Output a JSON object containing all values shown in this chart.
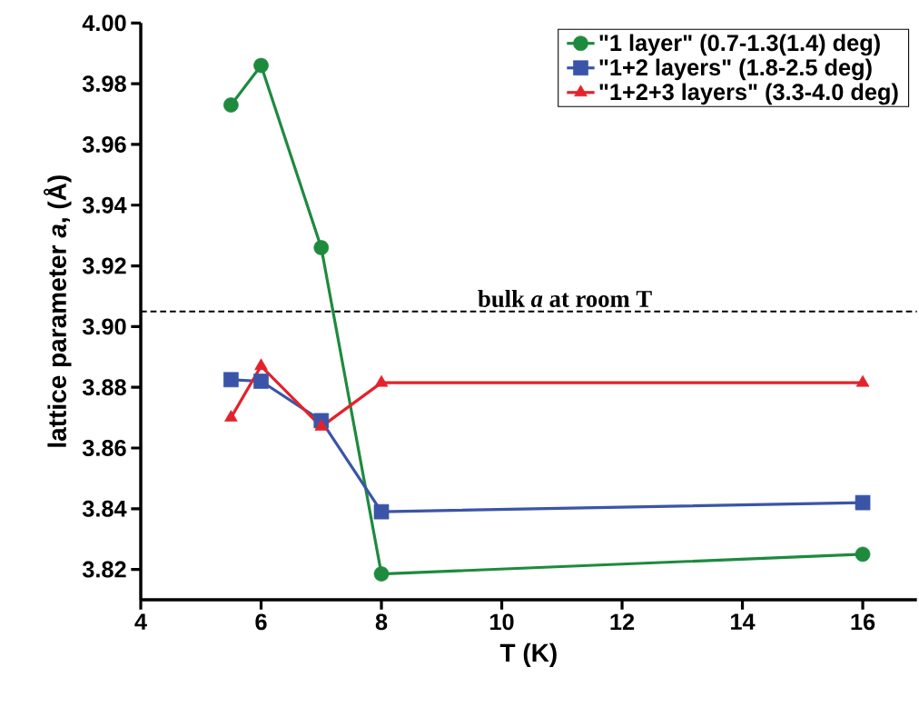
{
  "chart_data": {
    "type": "line",
    "xlabel": "T (K)",
    "ylabel": "lattice parameter *a*, (Å)",
    "x": [
      5.5,
      6,
      7,
      8,
      16
    ],
    "series": [
      {
        "name": "\"1 layer\" (0.7-1.3(1.4) deg)",
        "color": "#1e8a3e",
        "marker": "circle",
        "values": [
          3.973,
          3.986,
          3.926,
          3.8185,
          3.825
        ]
      },
      {
        "name": "\"1+2 layers\" (1.8-2.5 deg)",
        "color": "#3a55a8",
        "marker": "square",
        "values": [
          3.8825,
          3.882,
          3.869,
          3.839,
          3.842
        ]
      },
      {
        "name": "\"1+2+3 layers\" (3.3-4.0 deg)",
        "color": "#e4222b",
        "marker": "triangle",
        "values": [
          3.87,
          3.887,
          3.867,
          3.8815,
          3.8815
        ]
      }
    ],
    "xlim": [
      4,
      16.9
    ],
    "xticks": [
      4,
      6,
      8,
      10,
      12,
      14,
      16
    ],
    "ylim": [
      3.81,
      4.0
    ],
    "yticks": [
      {
        "value": 3.82,
        "label": "3.82"
      },
      {
        "value": 3.84,
        "label": "3.84"
      },
      {
        "value": 3.86,
        "label": "3.86"
      },
      {
        "value": 3.88,
        "label": "3.88"
      },
      {
        "value": 3.9,
        "label": "3.90"
      },
      {
        "value": 3.92,
        "label": "3.92"
      },
      {
        "value": 3.94,
        "label": "3.94"
      },
      {
        "value": 3.96,
        "label": "3.96"
      },
      {
        "value": 3.98,
        "label": "3.98"
      },
      {
        "value": 4.0,
        "label": "4.00"
      }
    ],
    "ref_lines": [
      {
        "axis": "y",
        "value": 3.905,
        "label": "bulk *a* at room T",
        "color": "#000000",
        "line_style": "dashed"
      }
    ],
    "grid": false,
    "legend": "top right",
    "line_style": "solid"
  }
}
